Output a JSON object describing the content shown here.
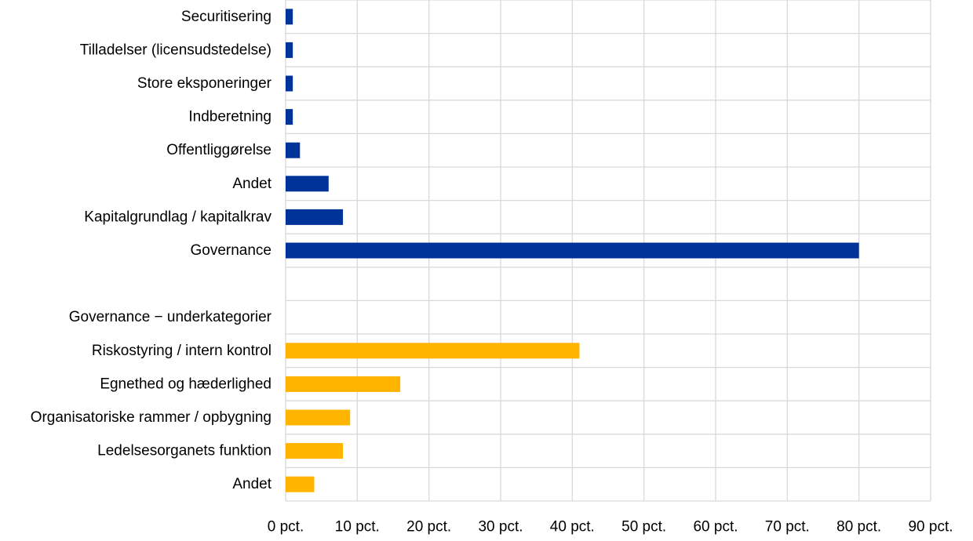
{
  "chart_data": {
    "type": "bar",
    "orientation": "horizontal",
    "title": "",
    "xlabel": "",
    "ylabel": "",
    "xlim": [
      0,
      90
    ],
    "x_ticks": [
      0,
      10,
      20,
      30,
      40,
      50,
      60,
      70,
      80,
      90
    ],
    "x_tick_labels": [
      "0 pct.",
      "10 pct.",
      "20 pct.",
      "30 pct.",
      "40 pct.",
      "50 pct.",
      "60 pct.",
      "70 pct.",
      "80 pct.",
      "90 pct."
    ],
    "grid": true,
    "legend": false,
    "colors": {
      "main": "#003399",
      "sub": "#FFB400",
      "grid": "#D9D9D9"
    },
    "categories": [
      "Securitisering",
      "Tilladelser (licensudstedelse)",
      "Store eksponeringer",
      "Indberetning",
      "Offentliggørelse",
      "Andet",
      "Kapitalgrundlag / kapitalkrav",
      "Governance",
      "",
      "Governance − underkategorier",
      "Riskostyring / intern kontrol",
      "Egnethed og hæderlighed",
      "Organisatoriske rammer / opbygning",
      "Ledelsesorganets funktion",
      "Andet"
    ],
    "series": [
      {
        "group": "main",
        "color": "#003399",
        "values": [
          1,
          1,
          1,
          1,
          2,
          6,
          8,
          80,
          null,
          null,
          null,
          null,
          null,
          null,
          null
        ]
      },
      {
        "group": "sub",
        "color": "#FFB400",
        "values": [
          null,
          null,
          null,
          null,
          null,
          null,
          null,
          null,
          null,
          null,
          41,
          16,
          9,
          8,
          4
        ]
      }
    ]
  }
}
